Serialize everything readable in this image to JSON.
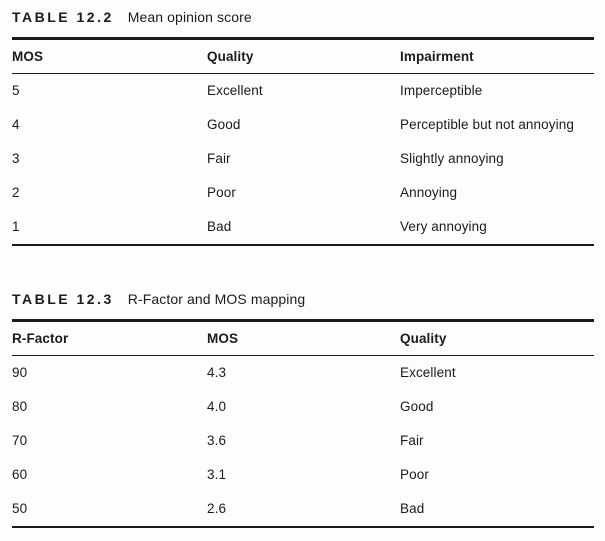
{
  "page": {
    "background_color": "#fdfdfd",
    "text_color": "#1b1b1b",
    "rule_color": "#1b1b1b"
  },
  "tables": [
    {
      "label": "TABLE 12.2",
      "caption": "Mean opinion score",
      "columns": [
        "MOS",
        "Quality",
        "Impairment"
      ],
      "rows": [
        [
          "5",
          "Excellent",
          "Imperceptible"
        ],
        [
          "4",
          "Good",
          "Perceptible but not annoying"
        ],
        [
          "3",
          "Fair",
          "Slightly annoying"
        ],
        [
          "2",
          "Poor",
          "Annoying"
        ],
        [
          "1",
          "Bad",
          "Very annoying"
        ]
      ]
    },
    {
      "label": "TABLE 12.3",
      "caption": "R-Factor and MOS mapping",
      "columns": [
        "R-Factor",
        "MOS",
        "Quality"
      ],
      "rows": [
        [
          "90",
          "4.3",
          "Excellent"
        ],
        [
          "80",
          "4.0",
          "Good"
        ],
        [
          "70",
          "3.6",
          "Fair"
        ],
        [
          "60",
          "3.1",
          "Poor"
        ],
        [
          "50",
          "2.6",
          "Bad"
        ]
      ]
    }
  ]
}
